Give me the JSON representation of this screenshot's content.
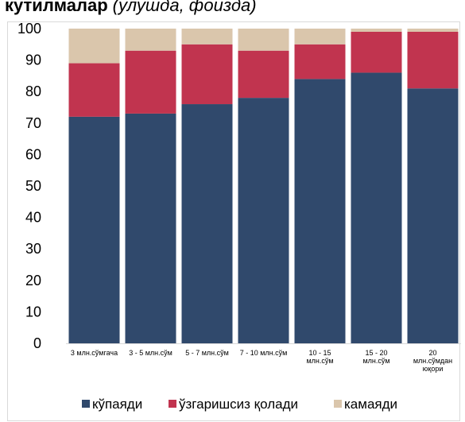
{
  "chart_data": {
    "type": "stacked_bar",
    "title": "кутилмалар",
    "subtitle": "(улушда, фоизда)",
    "categories": [
      [
        "3 млн.сўмгача"
      ],
      [
        "3 - 5 млн.сўм"
      ],
      [
        "5 - 7 млн.сўм"
      ],
      [
        "7 - 10 млн.сўм"
      ],
      [
        "10 - 15",
        "млн.сўм"
      ],
      [
        "15 - 20",
        "млн.сўм"
      ],
      [
        "20",
        "млн.сўмдан",
        "юқори"
      ]
    ],
    "series": [
      {
        "name": "кўпаяди",
        "color": "#30496c",
        "values": [
          72,
          73,
          76,
          78,
          84,
          86,
          81
        ]
      },
      {
        "name": "ўзгаришсиз қолади",
        "color": "#c1344f",
        "values": [
          17,
          20,
          19,
          15,
          11,
          13,
          18
        ]
      },
      {
        "name": "камаяди",
        "color": "#dac6ac",
        "values": [
          11,
          7,
          5,
          7,
          5,
          1,
          1
        ]
      }
    ],
    "ylim": [
      0,
      100
    ],
    "yticks": [
      0,
      10,
      20,
      30,
      40,
      50,
      60,
      70,
      80,
      90,
      100
    ],
    "grid": false,
    "legend": "bottom"
  }
}
